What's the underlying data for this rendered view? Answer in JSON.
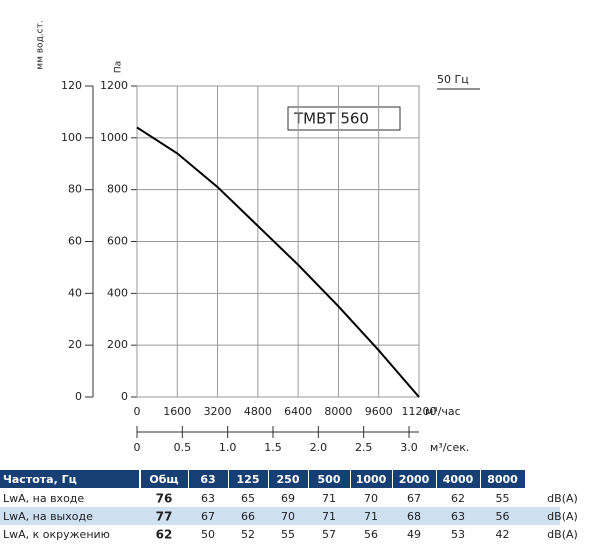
{
  "chart_data": {
    "type": "line",
    "y_label": "Па",
    "y2_label": "мм вод.ст.",
    "x_label": "м³/час",
    "x2_label": "м³/сек.",
    "annotation": "TMBT 560",
    "frequency_label": "50 Гц",
    "x": [
      0,
      1600,
      3200,
      4800,
      6400,
      8000,
      9600,
      11200
    ],
    "series": [
      {
        "color": "#000000",
        "values": [
          1040,
          940,
          810,
          660,
          510,
          350,
          180,
          0
        ]
      }
    ],
    "xlim": [
      0,
      11200
    ],
    "xticks": [
      0,
      1600,
      3200,
      4800,
      6400,
      8000,
      9600,
      11200
    ],
    "ylim": [
      0,
      1200
    ],
    "yticks": [
      0,
      200,
      400,
      600,
      800,
      1000,
      1200
    ],
    "y2lim": [
      0,
      120
    ],
    "y2ticks": [
      0,
      20,
      40,
      60,
      80,
      100,
      120
    ],
    "x2lim": [
      0,
      3.11
    ],
    "x2ticks": [
      0,
      {
        "value": 0.5,
        "label": "0.5"
      },
      {
        "value": 1,
        "label": "1.0"
      },
      {
        "value": 1.5,
        "label": "1.5"
      },
      {
        "value": 2,
        "label": "2.0"
      },
      {
        "value": 2.5,
        "label": "2.5"
      },
      {
        "value": 3,
        "label": "3.0"
      }
    ],
    "grid": true
  },
  "table": {
    "header": [
      "Частота, Гц",
      "Общ",
      "63",
      "125",
      "250",
      "500",
      "1000",
      "2000",
      "4000",
      "8000"
    ],
    "rows": [
      [
        "LwA, на входе",
        76,
        63,
        65,
        69,
        71,
        70,
        67,
        62,
        55,
        "dB(A)"
      ],
      [
        "LwA, на выходе",
        77,
        67,
        66,
        70,
        71,
        71,
        68,
        63,
        56,
        "dB(A)"
      ],
      [
        "LwA, к окружению",
        62,
        50,
        52,
        55,
        57,
        56,
        49,
        53,
        42,
        "dB(A)"
      ]
    ]
  }
}
